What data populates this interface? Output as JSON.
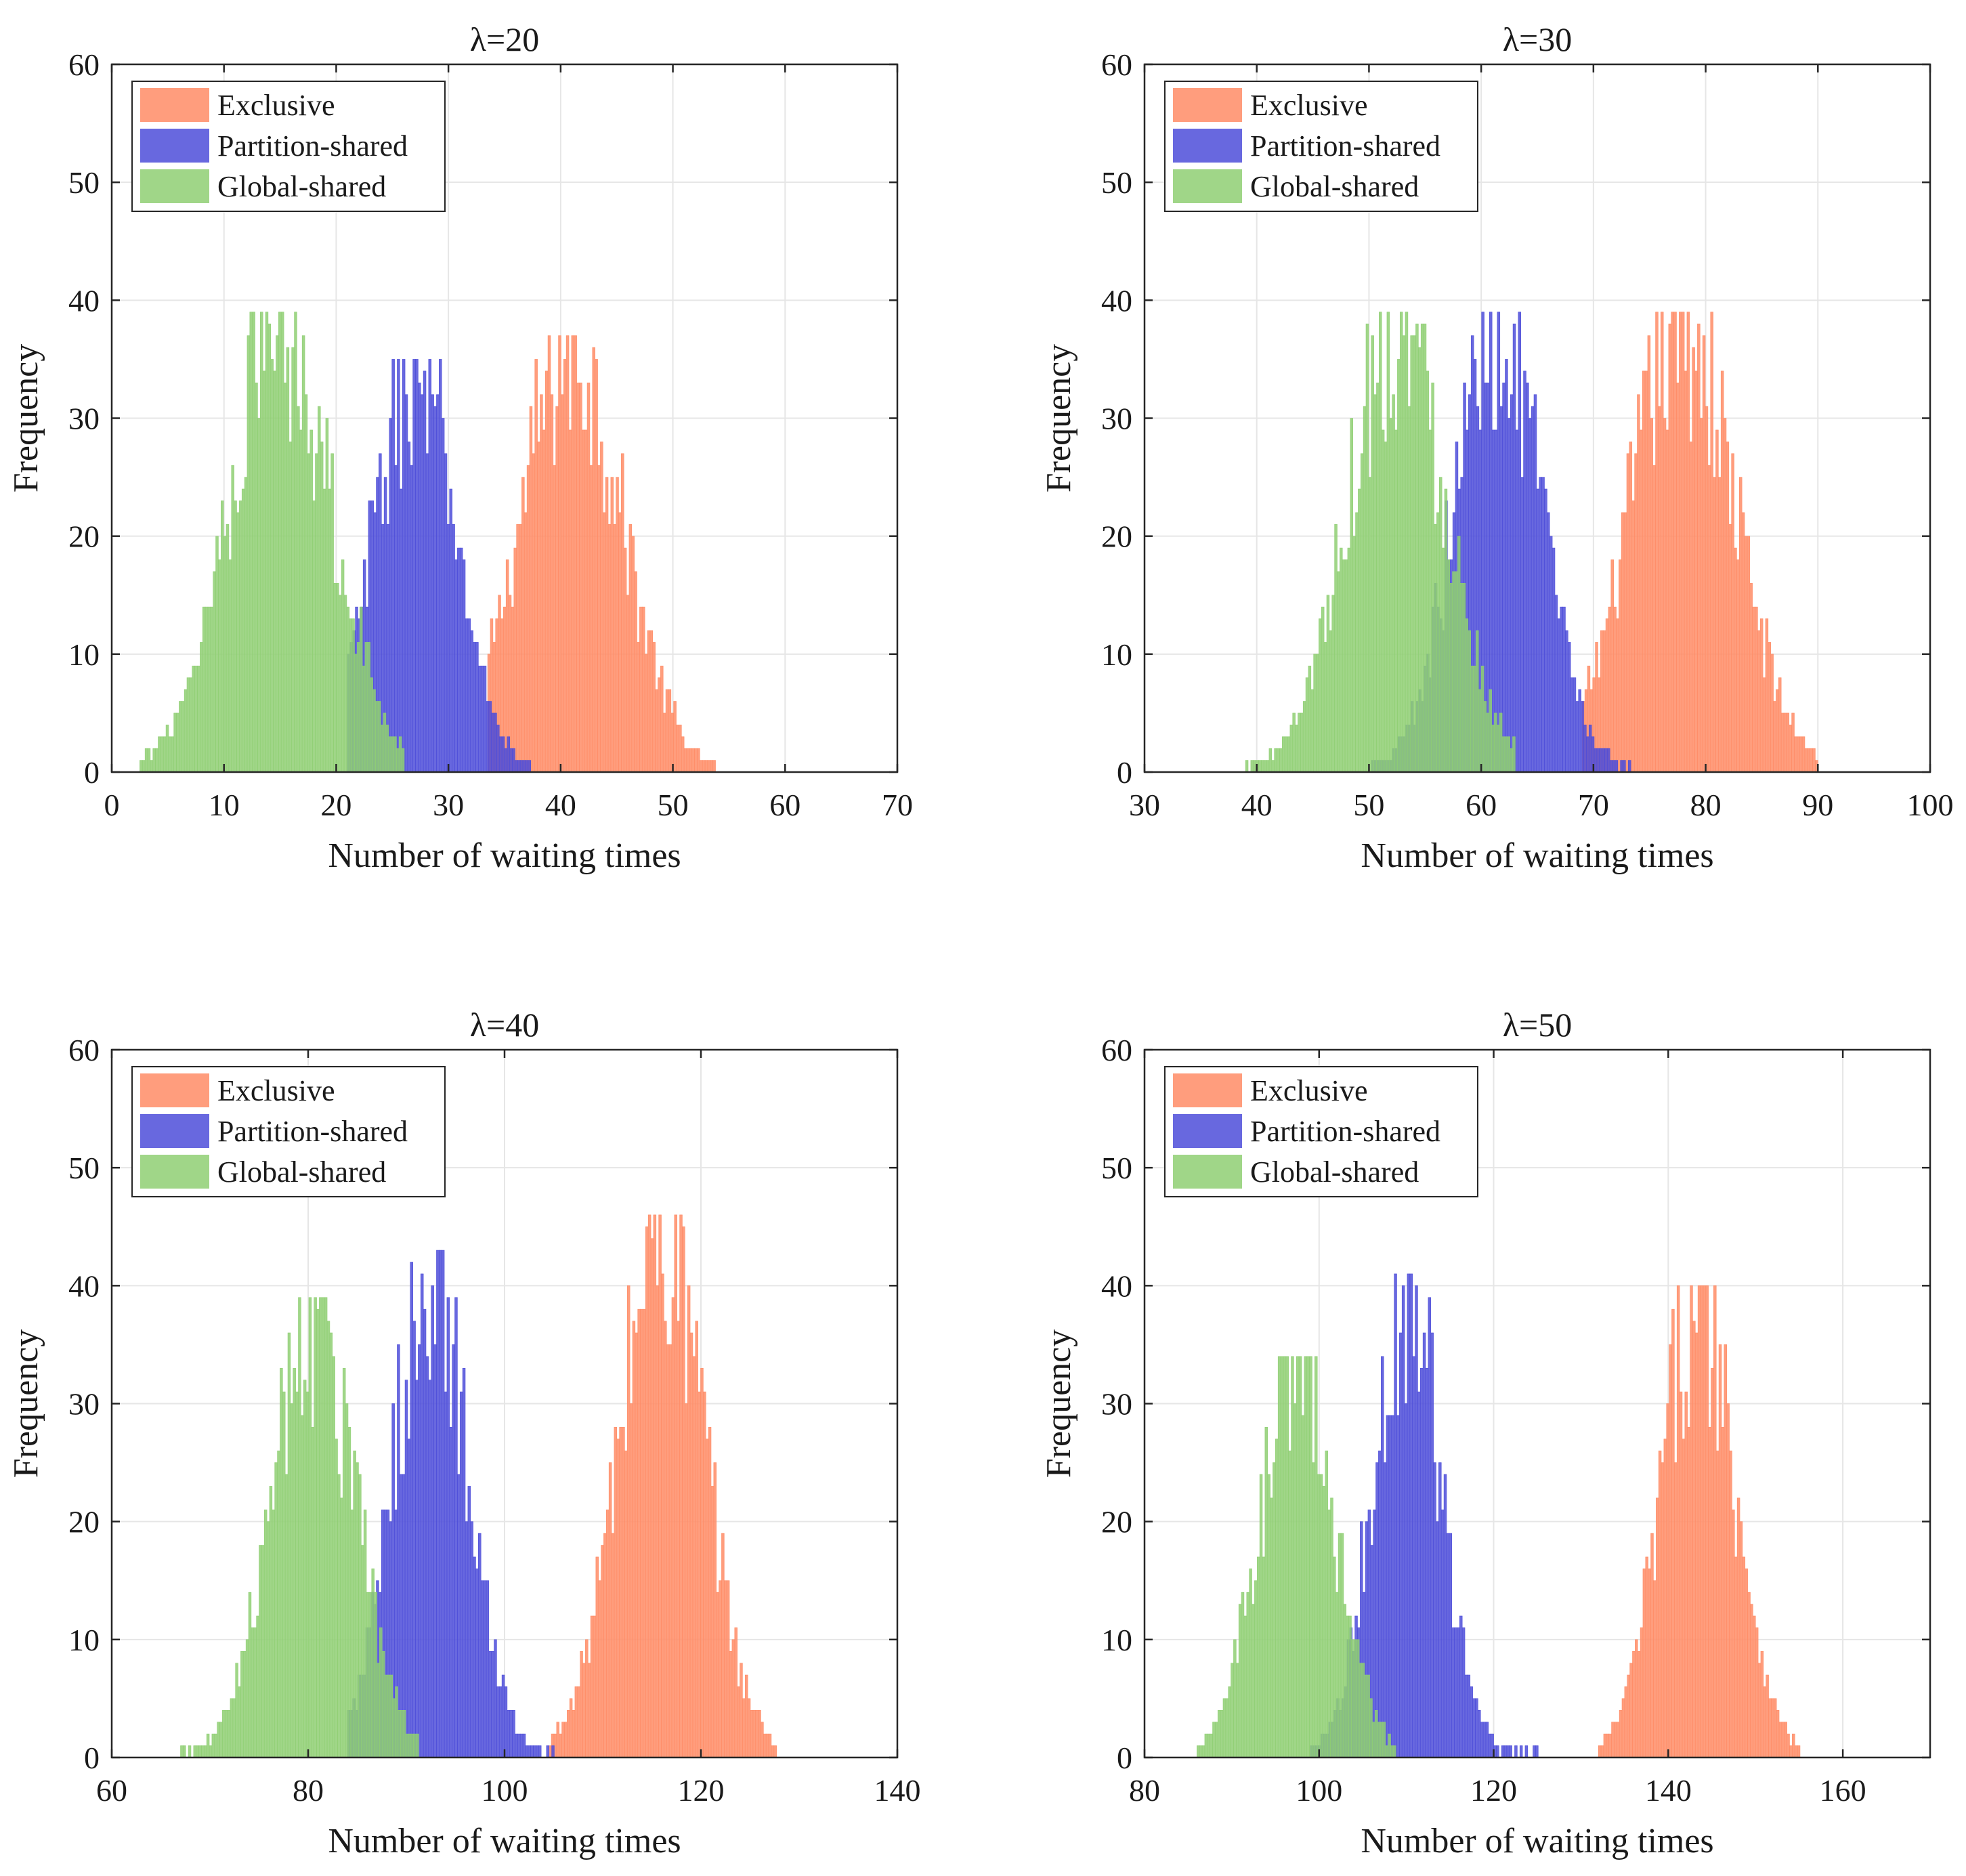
{
  "figure": {
    "description_free": true
  },
  "chart_data": [
    {
      "type": "bar",
      "title": "λ=20",
      "xlabel": "Number of waiting times",
      "ylabel": "Frequency",
      "xlim": [
        0,
        70
      ],
      "ylim": [
        0,
        60
      ],
      "xticks": [
        0,
        10,
        20,
        30,
        40,
        50,
        60,
        70
      ],
      "yticks": [
        0,
        10,
        20,
        30,
        40,
        50,
        60
      ],
      "grid": true,
      "legend_position": "top-left",
      "series": [
        {
          "name": "Exclusive",
          "color": "#ff8c66",
          "mean": 41.0,
          "sd": 4.5,
          "peak": 37,
          "start": 33.5,
          "end": 54.0
        },
        {
          "name": "Partition-shared",
          "color": "#4d4dd9",
          "mean": 27.0,
          "sd": 3.6,
          "peak": 35,
          "start": 21.0,
          "end": 37.5
        },
        {
          "name": "Global-shared",
          "color": "#8fcf73",
          "mean": 15.0,
          "sd": 4.6,
          "peak": 39,
          "start": 2.5,
          "end": 26.0
        }
      ]
    },
    {
      "type": "bar",
      "title": "λ=30",
      "xlabel": "Number of waiting times",
      "ylabel": "Frequency",
      "xlim": [
        30,
        100
      ],
      "ylim": [
        0,
        60
      ],
      "xticks": [
        30,
        40,
        50,
        60,
        70,
        80,
        90,
        100
      ],
      "yticks": [
        0,
        10,
        20,
        30,
        40,
        50,
        60
      ],
      "grid": true,
      "legend_position": "top-left",
      "series": [
        {
          "name": "Exclusive",
          "color": "#ff8c66",
          "mean": 78.0,
          "sd": 4.6,
          "peak": 39,
          "start": 69.0,
          "end": 90.0
        },
        {
          "name": "Partition-shared",
          "color": "#4d4dd9",
          "mean": 61.5,
          "sd": 3.8,
          "peak": 39,
          "start": 50.0,
          "end": 73.5
        },
        {
          "name": "Global-shared",
          "color": "#8fcf73",
          "mean": 52.5,
          "sd": 4.4,
          "peak": 39,
          "start": 39.0,
          "end": 63.0
        }
      ]
    },
    {
      "type": "bar",
      "title": "λ=40",
      "xlabel": "Number of waiting times",
      "ylabel": "Frequency",
      "xlim": [
        60,
        140
      ],
      "ylim": [
        0,
        60
      ],
      "xticks": [
        60,
        80,
        100,
        120,
        140
      ],
      "yticks": [
        0,
        10,
        20,
        30,
        40,
        50,
        60
      ],
      "grid": true,
      "legend_position": "top-left",
      "series": [
        {
          "name": "Exclusive",
          "color": "#ff8c66",
          "mean": 116.0,
          "sd": 4.3,
          "peak": 46,
          "start": 104.5,
          "end": 127.5
        },
        {
          "name": "Partition-shared",
          "color": "#4d4dd9",
          "mean": 92.5,
          "sd": 3.7,
          "peak": 43,
          "start": 84.0,
          "end": 105.0
        },
        {
          "name": "Global-shared",
          "color": "#8fcf73",
          "mean": 80.5,
          "sd": 4.2,
          "peak": 39,
          "start": 67.0,
          "end": 91.0
        }
      ]
    },
    {
      "type": "bar",
      "title": "λ=50",
      "xlabel": "Number of waiting times",
      "ylabel": "Frequency",
      "xlim": [
        80,
        170
      ],
      "ylim": [
        0,
        60
      ],
      "xticks": [
        80,
        100,
        120,
        140,
        160
      ],
      "yticks": [
        0,
        10,
        20,
        30,
        40,
        50,
        60
      ],
      "grid": true,
      "legend_position": "top-left",
      "series": [
        {
          "name": "Exclusive",
          "color": "#ff8c66",
          "mean": 143.5,
          "sd": 4.2,
          "peak": 40,
          "start": 132.0,
          "end": 155.0
        },
        {
          "name": "Partition-shared",
          "color": "#4d4dd9",
          "mean": 110.0,
          "sd": 3.8,
          "peak": 41,
          "start": 99.0,
          "end": 125.5
        },
        {
          "name": "Global-shared",
          "color": "#8fcf73",
          "mean": 97.5,
          "sd": 4.3,
          "peak": 34,
          "start": 86.0,
          "end": 108.5
        }
      ]
    }
  ]
}
